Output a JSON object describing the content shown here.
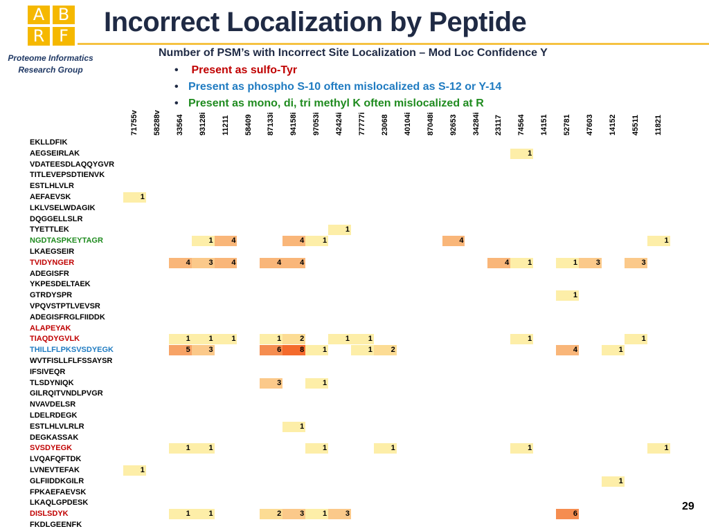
{
  "logo": {
    "letters": [
      "A",
      "B",
      "R",
      "F"
    ]
  },
  "group_name": {
    "line1": "Proteome Informatics",
    "line2": "Research Group"
  },
  "title": "Incorrect Localization by Peptide",
  "subtitle": "Number of PSM’s with Incorrect Site Localization – Mod Loc Confidence Y",
  "bullets": [
    {
      "text": " Present  as sulfo-Tyr",
      "color": "#c00000"
    },
    {
      "text": "Present as phospho S-10 often mislocalized as S-12 or Y-14",
      "color": "#1f7bc1"
    },
    {
      "text": "Present  as mono, di, tri methyl K often mislocalized at R",
      "color": "#1f8b1f"
    }
  ],
  "bullet_symbol": "•",
  "colors": {
    "label_default": "#000000",
    "label_red": "#c00000",
    "label_blue": "#1f7bc1",
    "label_green": "#1f8b1f",
    "heat_1": "#fdeea8",
    "heat_2": "#fcdc94",
    "heat_3": "#fbc98a",
    "heat_4": "#f9b679",
    "heat_5": "#f7a366",
    "heat_6": "#f58d50",
    "heat_8": "#f46a2c"
  },
  "heatmap": {
    "columns": [
      "71755v",
      "58288v",
      "33564",
      "93128i",
      "11211",
      "58409",
      "87133i",
      "94158i",
      "97053i",
      "42424i",
      "77777i",
      "23068",
      "40104i",
      "87048i",
      "92653",
      "34284i",
      "23117",
      "74564",
      "14151",
      "52781",
      "47603",
      "14152",
      "45511",
      "11821"
    ],
    "rows": [
      {
        "label": "EKLLDFIK",
        "color": "default",
        "cells": []
      },
      {
        "label": "AEGSEIRLAK",
        "color": "default",
        "cells": [
          {
            "col": 17,
            "v": 1
          }
        ]
      },
      {
        "label": "VDATEESDLAQQYGVR",
        "color": "default",
        "cells": []
      },
      {
        "label": "TITLEVEPSDTIENVK",
        "color": "default",
        "cells": []
      },
      {
        "label": "ESTLHLVLR",
        "color": "default",
        "cells": []
      },
      {
        "label": "AEFAEVSK",
        "color": "default",
        "cells": [
          {
            "col": 0,
            "v": 1
          }
        ]
      },
      {
        "label": "LKLVSELWDAGIK",
        "color": "default",
        "cells": []
      },
      {
        "label": "DQGGELLSLR",
        "color": "default",
        "cells": []
      },
      {
        "label": "TYETTLEK",
        "color": "default",
        "cells": [
          {
            "col": 9,
            "v": 1
          }
        ]
      },
      {
        "label": "NGDTASPKEYTAGR",
        "color": "green",
        "cells": [
          {
            "col": 3,
            "v": 1
          },
          {
            "col": 4,
            "v": 4
          },
          {
            "col": 7,
            "v": 4
          },
          {
            "col": 8,
            "v": 1
          },
          {
            "col": 14,
            "v": 4
          },
          {
            "col": 23,
            "v": 1
          }
        ]
      },
      {
        "label": "LKAEGSEIR",
        "color": "default",
        "cells": []
      },
      {
        "label": "TVIDYNGER",
        "color": "red",
        "cells": [
          {
            "col": 2,
            "v": 4
          },
          {
            "col": 3,
            "v": 3
          },
          {
            "col": 4,
            "v": 4
          },
          {
            "col": 6,
            "v": 4
          },
          {
            "col": 7,
            "v": 4
          },
          {
            "col": 16,
            "v": 4
          },
          {
            "col": 17,
            "v": 1
          },
          {
            "col": 19,
            "v": 1
          },
          {
            "col": 20,
            "v": 3
          },
          {
            "col": 22,
            "v": 3
          }
        ]
      },
      {
        "label": "ADEGISFR",
        "color": "default",
        "cells": []
      },
      {
        "label": "YKPESDELTAEK",
        "color": "default",
        "cells": []
      },
      {
        "label": "GTRDYSPR",
        "color": "default",
        "cells": [
          {
            "col": 19,
            "v": 1
          }
        ]
      },
      {
        "label": "VPQVSTPTLVEVSR",
        "color": "default",
        "cells": []
      },
      {
        "label": "ADEGISFRGLFIIDDK",
        "color": "default",
        "cells": []
      },
      {
        "label": "ALAPEYAK",
        "color": "red",
        "cells": []
      },
      {
        "label": "TIAQDYGVLK",
        "color": "red",
        "cells": [
          {
            "col": 2,
            "v": 1
          },
          {
            "col": 3,
            "v": 1
          },
          {
            "col": 4,
            "v": 1
          },
          {
            "col": 6,
            "v": 1
          },
          {
            "col": 7,
            "v": 2
          },
          {
            "col": 9,
            "v": 1
          },
          {
            "col": 10,
            "v": 1
          },
          {
            "col": 17,
            "v": 1
          },
          {
            "col": 22,
            "v": 1
          }
        ]
      },
      {
        "label": "THILLFLPKSVSDYEGK",
        "color": "blue",
        "cells": [
          {
            "col": 2,
            "v": 5
          },
          {
            "col": 3,
            "v": 3
          },
          {
            "col": 6,
            "v": 6
          },
          {
            "col": 7,
            "v": 8
          },
          {
            "col": 8,
            "v": 1
          },
          {
            "col": 10,
            "v": 1
          },
          {
            "col": 11,
            "v": 2
          },
          {
            "col": 19,
            "v": 4
          },
          {
            "col": 21,
            "v": 1
          }
        ]
      },
      {
        "label": "WVTFISLLFLFSSAYSR",
        "color": "default",
        "cells": []
      },
      {
        "label": "IFSIVEQR",
        "color": "default",
        "cells": []
      },
      {
        "label": "TLSDYNIQK",
        "color": "default",
        "cells": [
          {
            "col": 6,
            "v": 3
          },
          {
            "col": 8,
            "v": 1
          }
        ]
      },
      {
        "label": "GILRQITVNDLPVGR",
        "color": "default",
        "cells": []
      },
      {
        "label": "NVAVDELSR",
        "color": "default",
        "cells": []
      },
      {
        "label": "LDELRDEGK",
        "color": "default",
        "cells": []
      },
      {
        "label": "ESTLHLVLRLR",
        "color": "default",
        "cells": [
          {
            "col": 7,
            "v": 1
          }
        ]
      },
      {
        "label": "DEGKASSAK",
        "color": "default",
        "cells": []
      },
      {
        "label": "SVSDYEGK",
        "color": "red",
        "cells": [
          {
            "col": 2,
            "v": 1
          },
          {
            "col": 3,
            "v": 1
          },
          {
            "col": 8,
            "v": 1
          },
          {
            "col": 11,
            "v": 1
          },
          {
            "col": 17,
            "v": 1
          },
          {
            "col": 23,
            "v": 1
          }
        ]
      },
      {
        "label": "LVQAFQFTDK",
        "color": "default",
        "cells": []
      },
      {
        "label": "LVNEVTEFAK",
        "color": "default",
        "cells": [
          {
            "col": 0,
            "v": 1
          }
        ]
      },
      {
        "label": "GLFIIDDKGILR",
        "color": "default",
        "cells": [
          {
            "col": 21,
            "v": 1
          }
        ]
      },
      {
        "label": "FPKAEFAEVSK",
        "color": "default",
        "cells": []
      },
      {
        "label": "LKAQLGPDESK",
        "color": "default",
        "cells": []
      },
      {
        "label": "DISLSDYK",
        "color": "red",
        "cells": [
          {
            "col": 2,
            "v": 1
          },
          {
            "col": 3,
            "v": 1
          },
          {
            "col": 6,
            "v": 2
          },
          {
            "col": 7,
            "v": 3
          },
          {
            "col": 8,
            "v": 1
          },
          {
            "col": 9,
            "v": 3
          },
          {
            "col": 19,
            "v": 6
          }
        ]
      },
      {
        "label": "FKDLGEENFK",
        "color": "default",
        "cells": []
      }
    ]
  },
  "page_number": "29"
}
